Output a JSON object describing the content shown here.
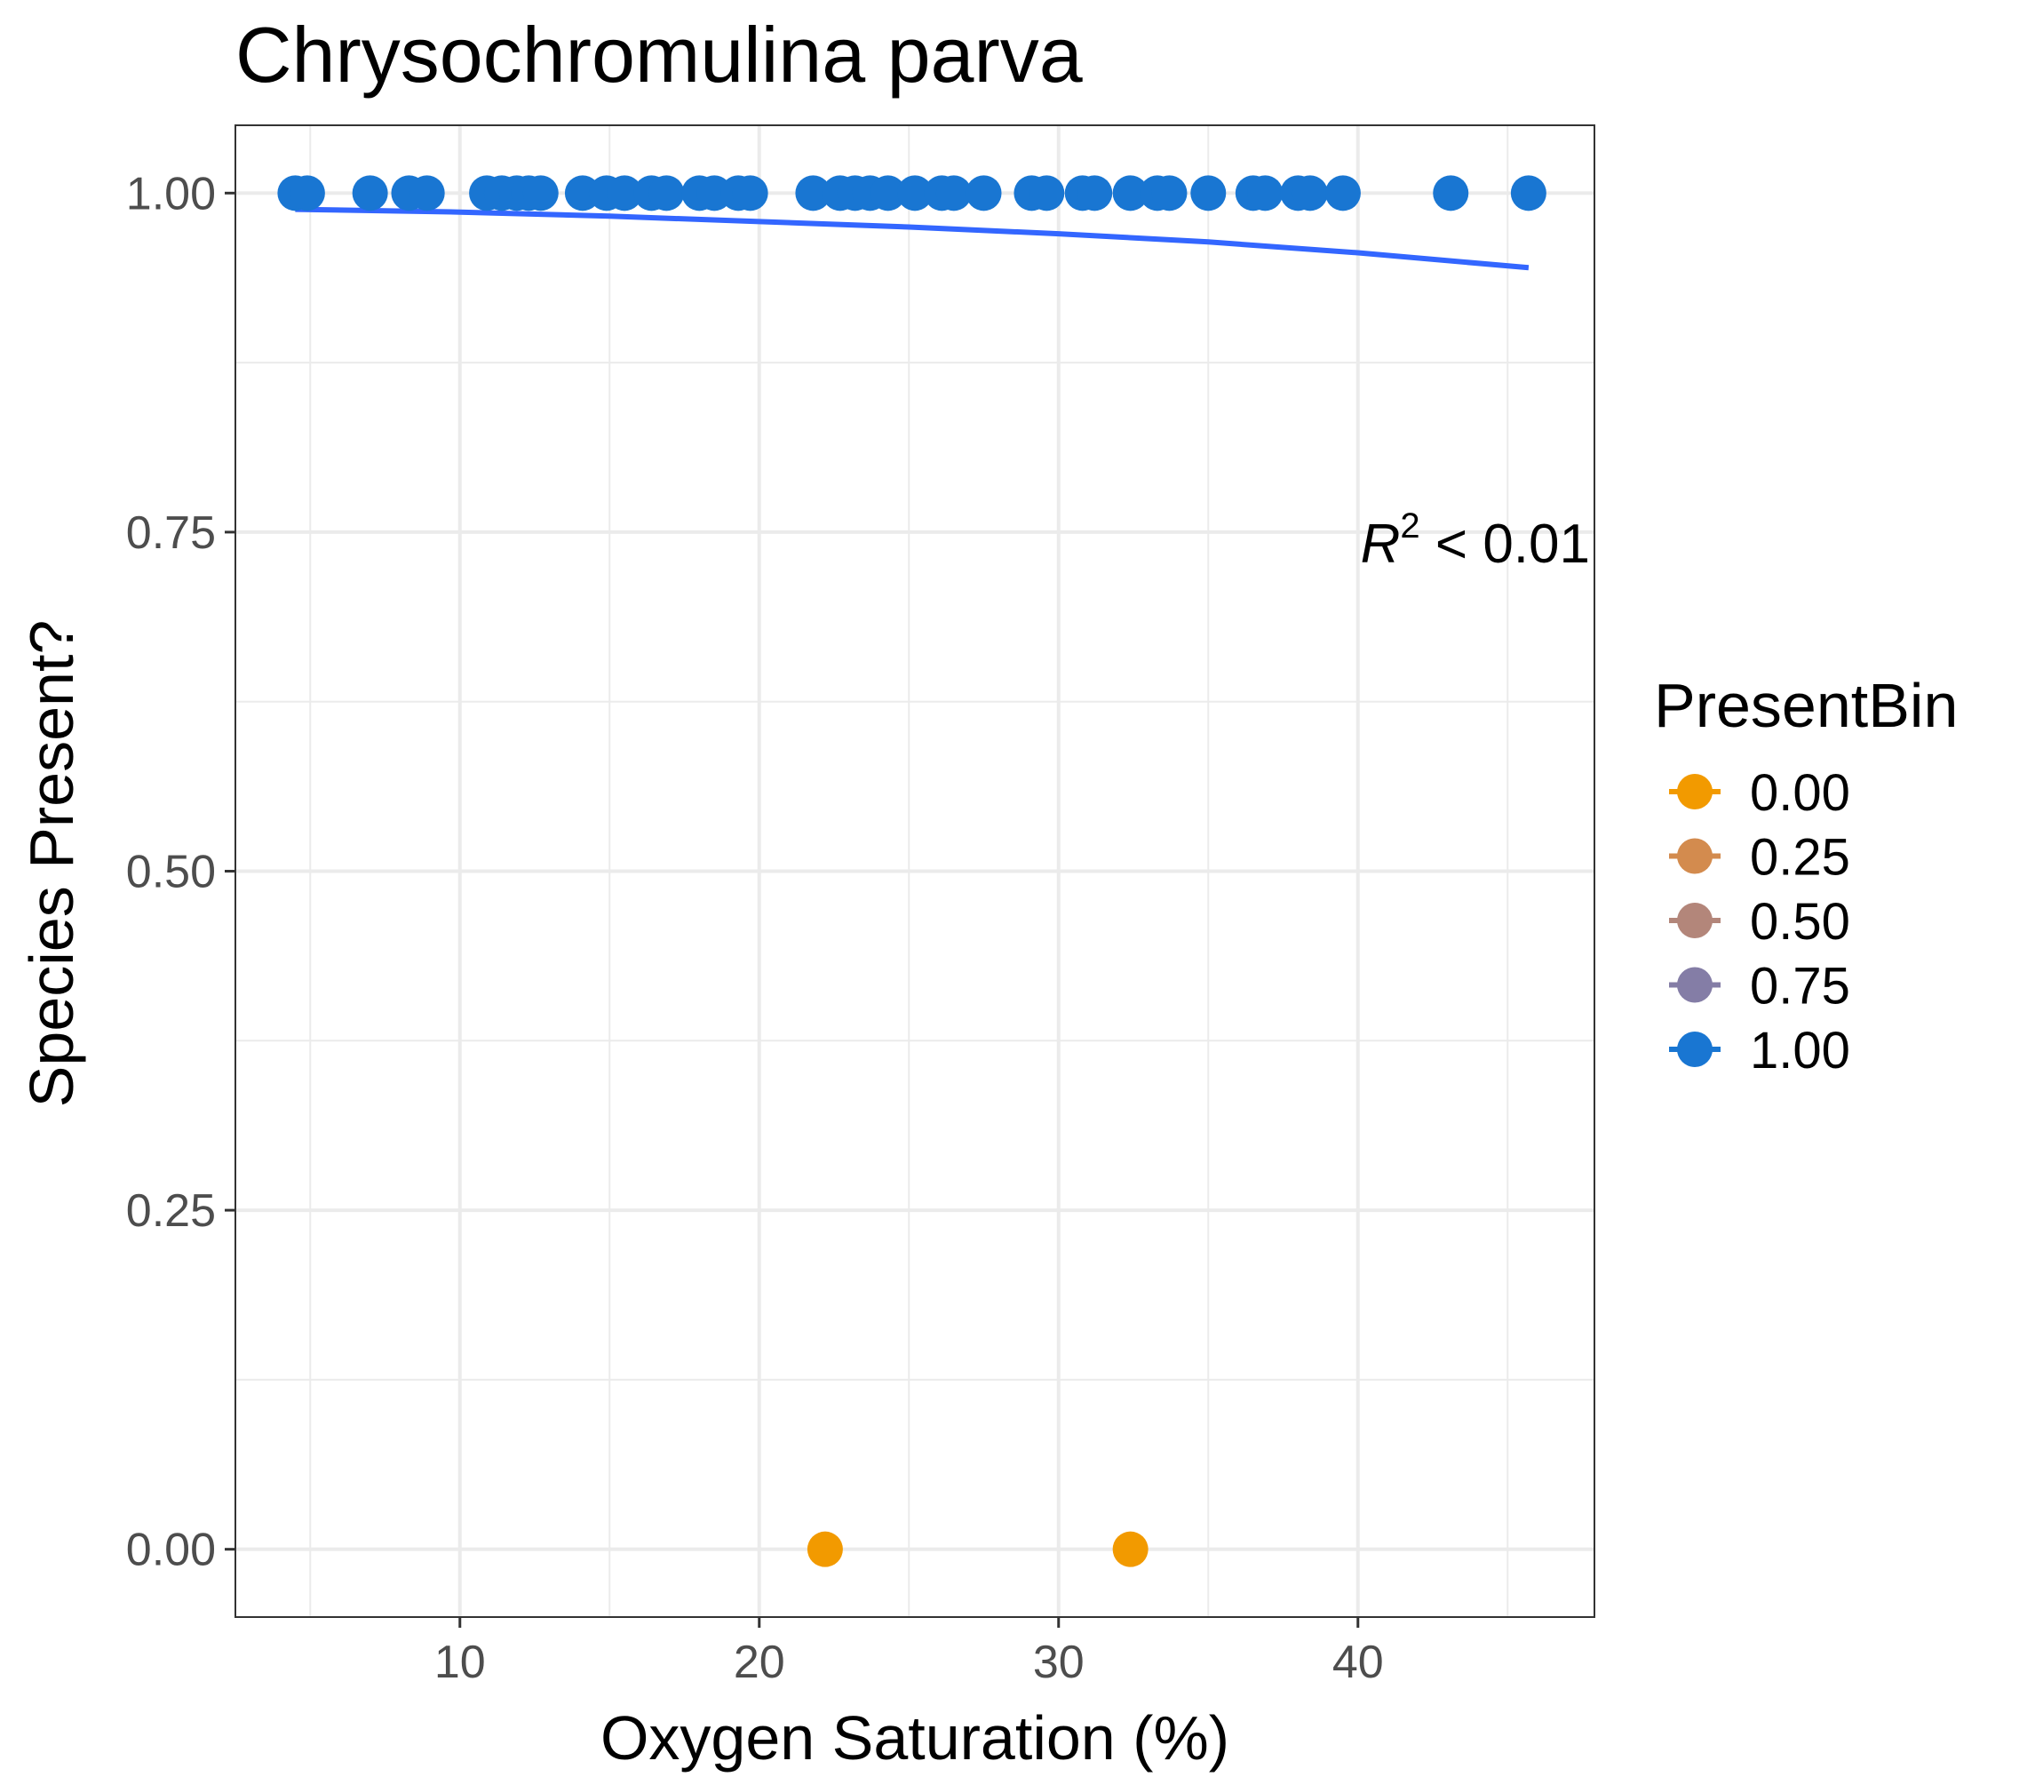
{
  "chart_data": {
    "type": "scatter",
    "title": "Chrysochromulina parva",
    "xlabel": "Oxygen Saturation (%)",
    "ylabel": "Species Present?",
    "xlim": [
      2.5,
      47.9
    ],
    "ylim": [
      -0.05,
      1.05
    ],
    "x_ticks": [
      10,
      20,
      30,
      40
    ],
    "x_tick_labels": [
      "10",
      "20",
      "30",
      "40"
    ],
    "y_ticks": [
      0,
      0.25,
      0.5,
      0.75,
      1.0
    ],
    "y_tick_labels": [
      "0.00",
      "0.25",
      "0.50",
      "0.75",
      "1.00"
    ],
    "grid": true,
    "legend": {
      "title": "PresentBin",
      "position": "right",
      "entries": [
        {
          "label": "0.00",
          "color": "#f29a00"
        },
        {
          "label": "0.25",
          "color": "#d38b4e"
        },
        {
          "label": "0.50",
          "color": "#b3867a"
        },
        {
          "label": "0.75",
          "color": "#847da6"
        },
        {
          "label": "1.00",
          "color": "#1976d2"
        }
      ]
    },
    "series": [
      {
        "present_bin": 1.0,
        "color": "#1976d2",
        "points": [
          [
            4.5,
            1
          ],
          [
            4.9,
            1
          ],
          [
            7.0,
            1
          ],
          [
            8.3,
            1
          ],
          [
            8.9,
            1
          ],
          [
            10.9,
            1
          ],
          [
            11.4,
            1
          ],
          [
            11.9,
            1
          ],
          [
            12.3,
            1
          ],
          [
            12.7,
            1
          ],
          [
            14.1,
            1
          ],
          [
            14.9,
            1
          ],
          [
            15.5,
            1
          ],
          [
            16.4,
            1
          ],
          [
            16.9,
            1
          ],
          [
            18.0,
            1
          ],
          [
            18.5,
            1
          ],
          [
            19.3,
            1
          ],
          [
            19.7,
            1
          ],
          [
            21.8,
            1
          ],
          [
            22.7,
            1
          ],
          [
            23.2,
            1
          ],
          [
            23.7,
            1
          ],
          [
            24.3,
            1
          ],
          [
            25.2,
            1
          ],
          [
            26.1,
            1
          ],
          [
            26.5,
            1
          ],
          [
            27.5,
            1
          ],
          [
            29.1,
            1
          ],
          [
            29.6,
            1
          ],
          [
            30.8,
            1
          ],
          [
            31.2,
            1
          ],
          [
            32.4,
            1
          ],
          [
            33.3,
            1
          ],
          [
            33.7,
            1
          ],
          [
            35.0,
            1
          ],
          [
            36.5,
            1
          ],
          [
            36.9,
            1
          ],
          [
            38.0,
            1
          ],
          [
            38.4,
            1
          ],
          [
            39.5,
            1
          ],
          [
            43.1,
            1
          ],
          [
            45.7,
            1
          ]
        ]
      },
      {
        "present_bin": 0.0,
        "color": "#f29a00",
        "points": [
          [
            22.2,
            0
          ],
          [
            32.4,
            0
          ]
        ]
      }
    ],
    "fit_line": {
      "color": "#3366ff",
      "points": [
        [
          4.5,
          0.988
        ],
        [
          10,
          0.986
        ],
        [
          15,
          0.983
        ],
        [
          20,
          0.979
        ],
        [
          25,
          0.975
        ],
        [
          30,
          0.97
        ],
        [
          35,
          0.964
        ],
        [
          40,
          0.956
        ],
        [
          45.7,
          0.945
        ]
      ]
    },
    "annotation": {
      "r_symbol": "R",
      "exponent": "2",
      "rest": " < 0.01"
    }
  }
}
